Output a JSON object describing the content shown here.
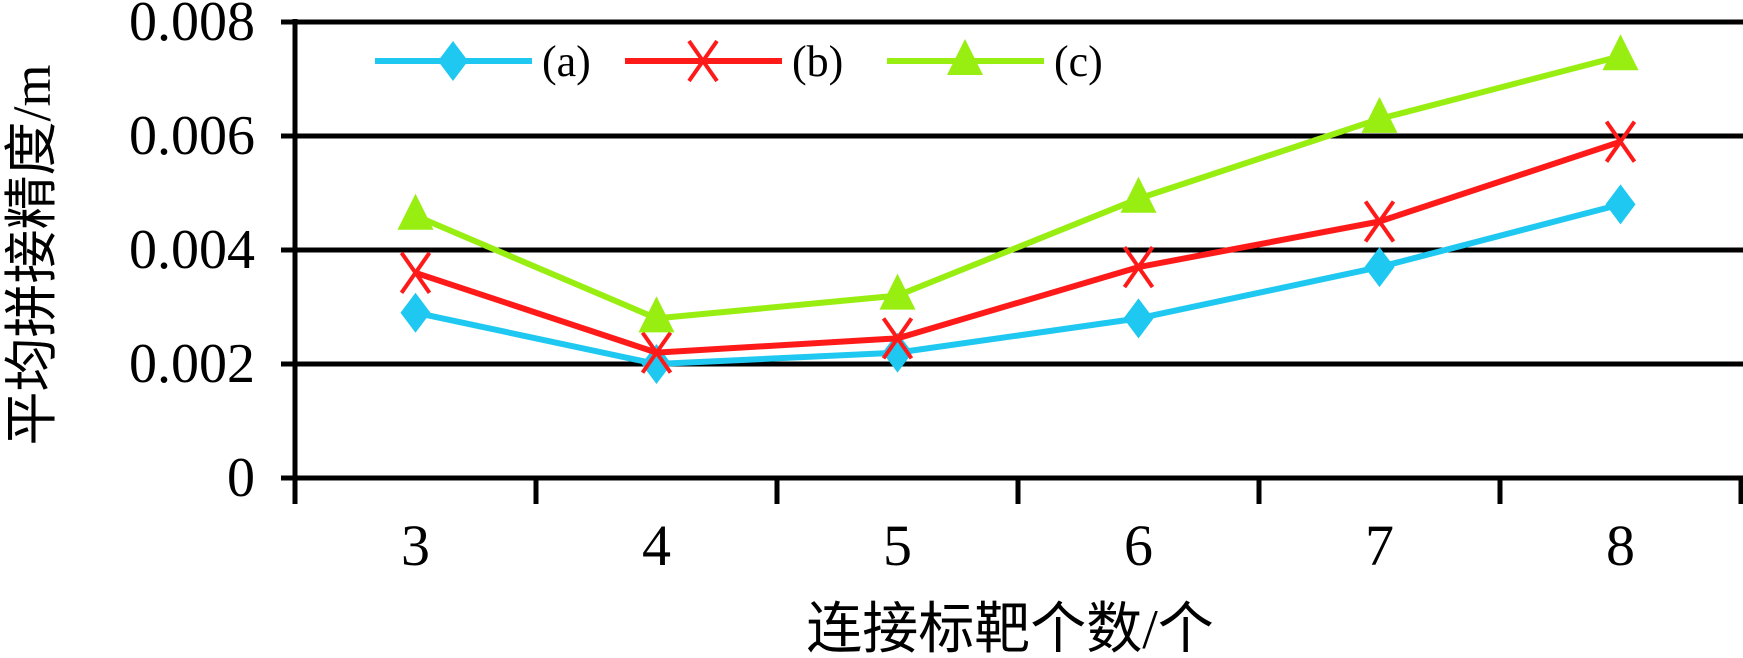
{
  "chart_data": {
    "type": "line",
    "title": "",
    "xlabel": "连接标靶个数/个",
    "ylabel": "平均拼接精度/m",
    "categories": [
      "3",
      "4",
      "5",
      "6",
      "7",
      "8"
    ],
    "ylim": [
      0,
      0.008
    ],
    "yticks": [
      "0",
      "0.002",
      "0.004",
      "0.006",
      "0.008"
    ],
    "grid": true,
    "legend_position": "top-left",
    "series": [
      {
        "name": "(a)",
        "color": "#1ec8f0",
        "marker": "diamond",
        "values": [
          0.0029,
          0.002,
          0.0022,
          0.0028,
          0.0037,
          0.0048
        ]
      },
      {
        "name": "(b)",
        "color": "#ff1a1a",
        "marker": "x",
        "values": [
          0.0036,
          0.0022,
          0.00245,
          0.0037,
          0.0045,
          0.0059
        ]
      },
      {
        "name": "(c)",
        "color": "#99ee11",
        "marker": "triangle",
        "values": [
          0.0046,
          0.0028,
          0.0032,
          0.0049,
          0.0063,
          0.0074
        ]
      }
    ]
  }
}
